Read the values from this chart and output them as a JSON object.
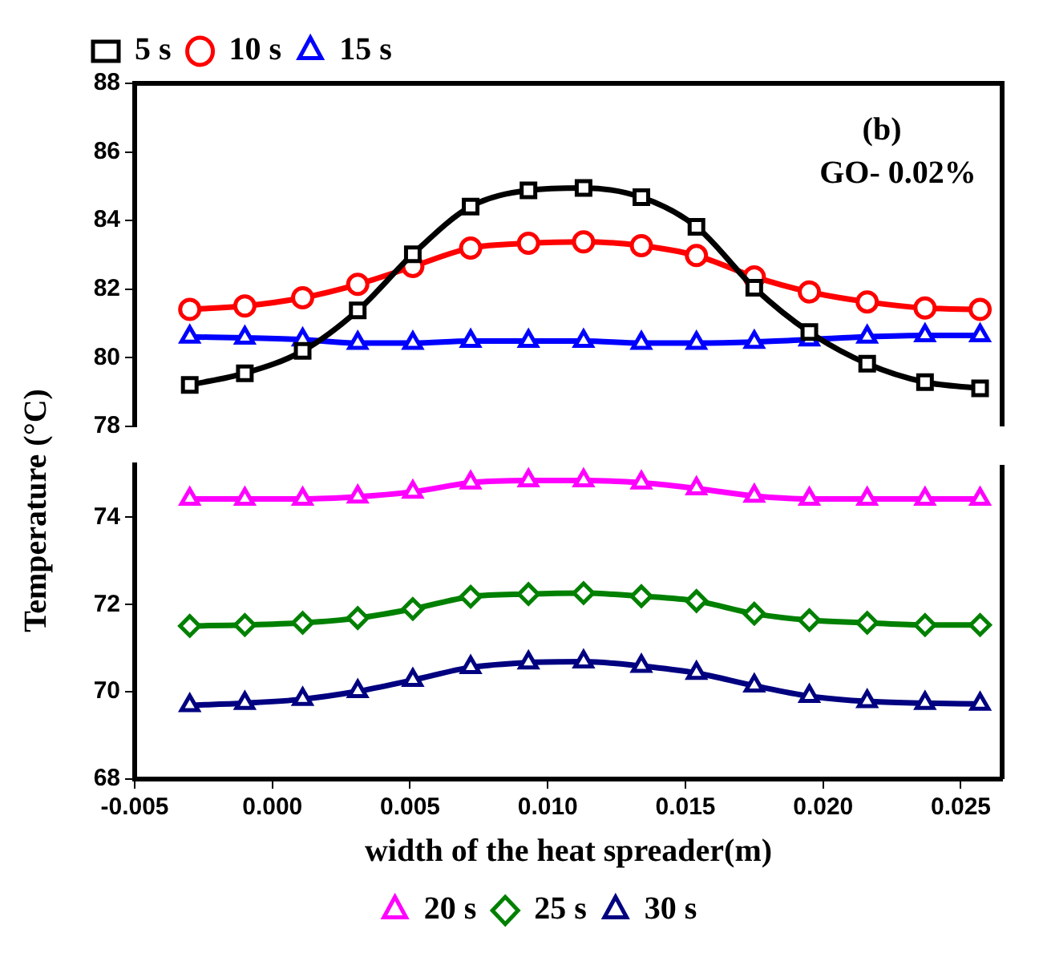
{
  "chart_data": [
    {
      "type": "line",
      "annotations": [
        "(b)",
        "GO- 0.02%"
      ],
      "x": [
        -0.003,
        -0.001,
        0.0011,
        0.0031,
        0.0051,
        0.0072,
        0.0093,
        0.0113,
        0.0134,
        0.0154,
        0.0175,
        0.0195,
        0.0216,
        0.0237,
        0.0257
      ],
      "xlim": [
        -0.005,
        0.0265
      ],
      "ylim": [
        78,
        88
      ],
      "yticks": [
        78,
        80,
        82,
        84,
        86,
        88
      ],
      "tick_labels": "y",
      "legend": "top left",
      "grid": false,
      "line_style": "solid",
      "series": [
        {
          "name": "5 s",
          "color": "#000000",
          "marker": "square",
          "values": [
            79.21,
            79.55,
            80.2,
            81.38,
            83.02,
            84.41,
            84.88,
            84.95,
            84.68,
            83.82,
            82.04,
            80.75,
            79.83,
            79.29,
            79.11
          ]
        },
        {
          "name": "10 s",
          "color": "#ff0000",
          "marker": "circle",
          "values": [
            81.41,
            81.51,
            81.75,
            82.14,
            82.66,
            83.2,
            83.34,
            83.38,
            83.27,
            82.98,
            82.36,
            81.92,
            81.63,
            81.45,
            81.41
          ]
        },
        {
          "name": "15 s",
          "color": "#0000ff",
          "marker": "triangle",
          "values": [
            80.61,
            80.58,
            80.53,
            80.43,
            80.43,
            80.49,
            80.49,
            80.49,
            80.43,
            80.43,
            80.46,
            80.53,
            80.61,
            80.65,
            80.65
          ]
        }
      ]
    },
    {
      "type": "line",
      "xlabel": "width of the heat spreader(m)",
      "ylabel": "Temperature (°C)",
      "x": [
        -0.003,
        -0.001,
        0.0011,
        0.0031,
        0.0051,
        0.0072,
        0.0093,
        0.0113,
        0.0134,
        0.0154,
        0.0175,
        0.0195,
        0.0216,
        0.0237,
        0.0257
      ],
      "xlim": [
        -0.005,
        0.0265
      ],
      "xticks": [
        {
          "value": -0.005,
          "label": "-0.005"
        },
        {
          "value": 0,
          "label": "0.000"
        },
        {
          "value": 0.005,
          "label": "0.005"
        },
        {
          "value": 0.01,
          "label": "0.010"
        },
        {
          "value": 0.015,
          "label": "0.015"
        },
        {
          "value": 0.02,
          "label": "0.020"
        },
        {
          "value": 0.025,
          "label": "0.025"
        }
      ],
      "ylim": [
        68,
        75.2
      ],
      "yticks": [
        68,
        70,
        72,
        74
      ],
      "legend": "bottom",
      "grid": false,
      "line_style": "solid",
      "series": [
        {
          "name": "20 s",
          "color": "#ff00ff",
          "marker": "triangle",
          "values": [
            74.42,
            74.42,
            74.42,
            74.47,
            74.58,
            74.79,
            74.84,
            74.84,
            74.79,
            74.66,
            74.49,
            74.42,
            74.42,
            74.42,
            74.42
          ]
        },
        {
          "name": "25 s",
          "color": "#008000",
          "marker": "diamond",
          "values": [
            71.51,
            71.53,
            71.58,
            71.69,
            71.9,
            72.18,
            72.24,
            72.26,
            72.19,
            72.08,
            71.79,
            71.64,
            71.58,
            71.53,
            71.53
          ]
        },
        {
          "name": "30 s",
          "color": "#000080",
          "marker": "triangle",
          "values": [
            69.69,
            69.74,
            69.83,
            70.01,
            70.27,
            70.56,
            70.67,
            70.69,
            70.59,
            70.43,
            70.14,
            69.9,
            69.78,
            69.74,
            69.72
          ]
        }
      ]
    }
  ]
}
